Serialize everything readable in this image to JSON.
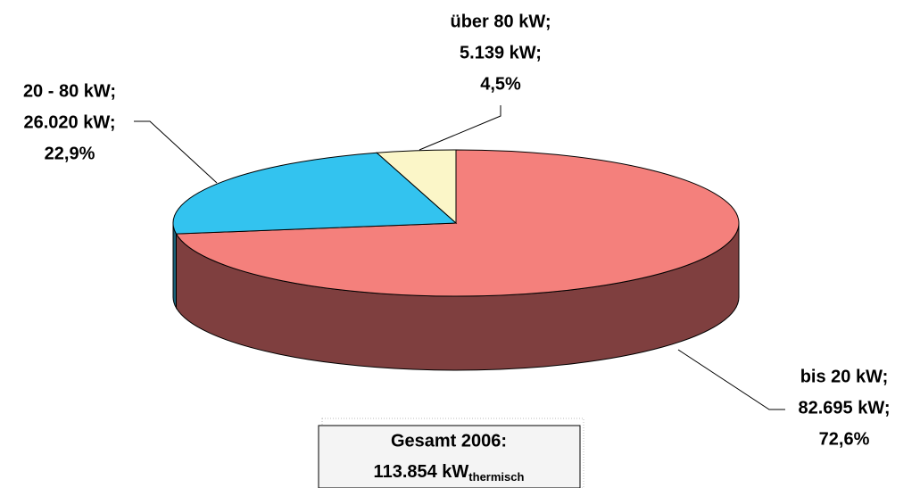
{
  "chart_data": {
    "type": "pie",
    "categories": [
      "bis 20 kW;",
      "20 - 80 kW;",
      "über 80 kW;"
    ],
    "values": [
      82695,
      26020,
      5139
    ],
    "value_labels": [
      "82.695 kW;",
      "26.020 kW;",
      "5.139 kW;"
    ],
    "percents": [
      72.6,
      22.9,
      4.5
    ],
    "percent_labels": [
      "72,6%",
      "22,9%",
      "4,5%"
    ],
    "colors": [
      "#f4807c",
      "#33c3ef",
      "#fbf6c8"
    ],
    "side_colors": [
      "#7f3f3f",
      "#1a6178",
      "#8a8660"
    ],
    "annotation": {
      "line1": "Gesamt 2006:",
      "total": "113.854 kW",
      "subscript": "thermisch"
    }
  }
}
